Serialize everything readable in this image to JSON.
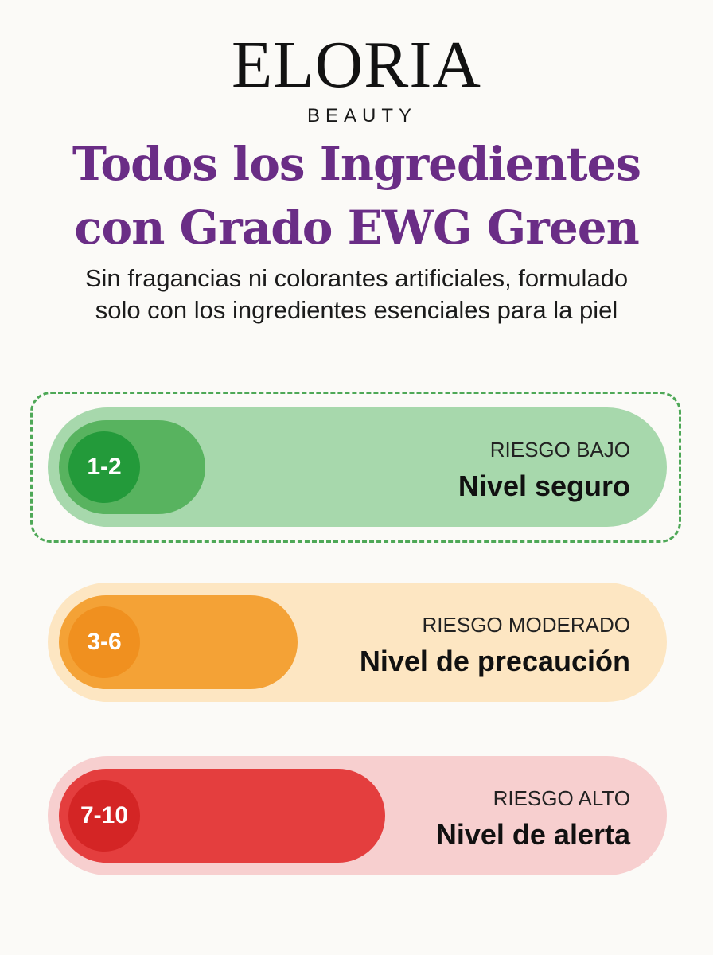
{
  "brand": {
    "name": "ELORIA",
    "sub": "BEAUTY"
  },
  "headline": {
    "line1": "Todos los Ingredientes",
    "line2": "con Grado EWG Green",
    "color": "#6a2d86"
  },
  "subline": {
    "line1": "Sin fragancias ni colorantes artificiales, formulado",
    "line2": "solo con los ingredientes esenciales para la piel"
  },
  "tiers": [
    {
      "range": "1-2",
      "label": "RIESGO BAJO",
      "title": "Nivel seguro",
      "color": "#239a3a",
      "fill": 0.22
    },
    {
      "range": "3-6",
      "label": "RIESGO MODERADO",
      "title": "Nivel de precaución",
      "color": "#f0901f",
      "fill": 0.4
    },
    {
      "range": "7-10",
      "label": "RIESGO ALTO",
      "title": "Nivel de alerta",
      "color": "#d42525",
      "fill": 0.55
    }
  ]
}
